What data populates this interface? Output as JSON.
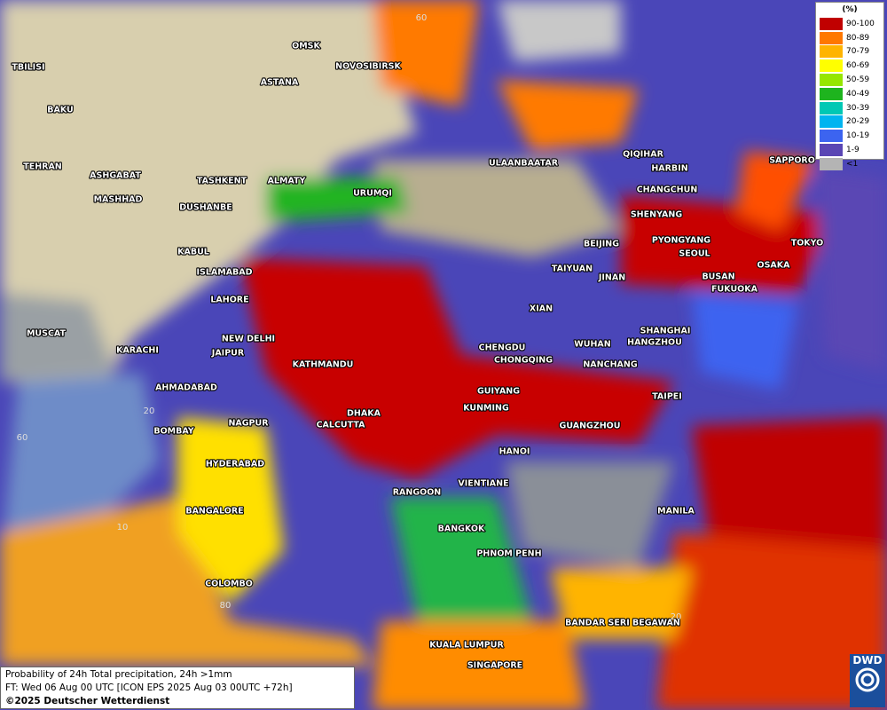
{
  "legend": {
    "title": "(%)",
    "entries": [
      {
        "label": "90-100",
        "color": "#c00000"
      },
      {
        "label": "80-89",
        "color": "#ff7800"
      },
      {
        "label": "70-79",
        "color": "#ffb400"
      },
      {
        "label": "60-69",
        "color": "#ffff00"
      },
      {
        "label": "50-59",
        "color": "#96e600"
      },
      {
        "label": "40-49",
        "color": "#1eb41e"
      },
      {
        "label": "30-39",
        "color": "#00c8b4"
      },
      {
        "label": "20-29",
        "color": "#00b4f0"
      },
      {
        "label": "10-19",
        "color": "#3c64f0"
      },
      {
        "label": "1-9",
        "color": "#5a46b4"
      },
      {
        "label": "<1",
        "color": "#b4b4b4"
      }
    ]
  },
  "cities": [
    "TBILISI",
    "OMSK",
    "NOVOSIBIRSK",
    "ASTANA",
    "BAKU",
    "TEHRAN",
    "ASHGABAT",
    "MASHHAD",
    "TASHKENT",
    "ALMATY",
    "URUMQI",
    "DUSHANBE",
    "ULAANBAATAR",
    "QIQIHAR",
    "HARBIN",
    "CHANGCHUN",
    "SHENYANG",
    "SAPPORO",
    "BEIJING",
    "PYONGYANG",
    "SEOUL",
    "TOKYO",
    "OSAKA",
    "BUSAN",
    "FUKUOKA",
    "TAIYUAN",
    "JINAN",
    "KABUL",
    "ISLAMABAD",
    "LAHORE",
    "XIAN",
    "SHANGHAI",
    "WUHAN",
    "HANGZHOU",
    "MUSCAT",
    "KARACHI",
    "NEW DELHI",
    "JAIPUR",
    "CHENGDU",
    "CHONGQING",
    "NANCHANG",
    "KATHMANDU",
    "AHMADABAD",
    "TAIPEI",
    "GUIYANG",
    "KUNMING",
    "DHAKA",
    "CALCUTTA",
    "NAGPUR",
    "GUANGZHOU",
    "BOMBAY",
    "HANOI",
    "HYDERABAD",
    "RANGOON",
    "VIENTIANE",
    "BANGALORE",
    "MANILA",
    "BANGKOK",
    "PHNOM PENH",
    "COLOMBO",
    "BANDAR SERI BEGAWAN",
    "KUALA LUMPUR",
    "SINGAPORE"
  ],
  "graticule_labels": [
    "60",
    "60",
    "20",
    "10",
    "80",
    "20"
  ],
  "footer": {
    "line1": "Probability of 24h Total precipitation, 24h >1mm",
    "line2": "FT: Wed 06 Aug 00 UTC [ICON EPS 2025 Aug 03 00UTC +72h]",
    "line3": "©2025 Deutscher Wetterdienst"
  },
  "logo": "DWD"
}
